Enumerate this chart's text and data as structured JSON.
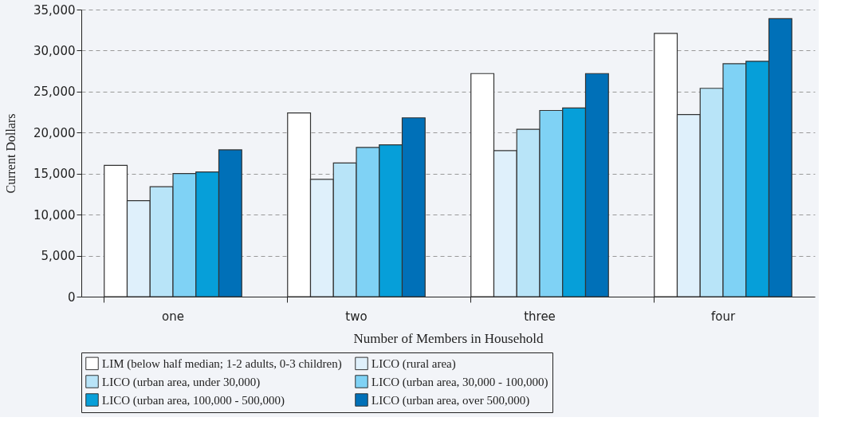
{
  "chart_data": {
    "type": "bar",
    "xlabel": "Number of Members in Household",
    "ylabel": "Current Dollars",
    "categories": [
      "one",
      "two",
      "three",
      "four"
    ],
    "series": [
      {
        "name": "LIM (below half median; 1-2 adults, 0-3 children)",
        "color": "#ffffff",
        "values": [
          16000,
          22400,
          27200,
          32100
        ]
      },
      {
        "name": "LICO (rural area)",
        "color": "#dff0fb",
        "values": [
          11700,
          14300,
          17800,
          22200
        ]
      },
      {
        "name": "LICO (urban area, under 30,000)",
        "color": "#b8e4f8",
        "values": [
          13400,
          16300,
          20400,
          25400
        ]
      },
      {
        "name": "LICO (urban area, 30,000 - 100,000)",
        "color": "#7fd2f5",
        "values": [
          15000,
          18200,
          22700,
          28400
        ]
      },
      {
        "name": "LICO (urban area, 100,000 - 500,000)",
        "color": "#069fd9",
        "values": [
          15200,
          18500,
          23000,
          28700
        ]
      },
      {
        "name": "LICO (urban area, over 500,000)",
        "color": "#0070b8",
        "values": [
          17900,
          21800,
          27200,
          33900
        ]
      }
    ],
    "ylim": [
      0,
      35000
    ],
    "yticks": [
      0,
      {
        "value": 5000,
        "label": "5,000"
      },
      {
        "value": 10000,
        "label": "10,000"
      },
      {
        "value": 15000,
        "label": "15,000"
      },
      {
        "value": 20000,
        "label": "20,000"
      },
      {
        "value": 25000,
        "label": "25,000"
      },
      {
        "value": 30000,
        "label": "30,000"
      },
      {
        "value": 35000,
        "label": "35,000"
      }
    ],
    "grid": "y",
    "legend": "bottom"
  }
}
